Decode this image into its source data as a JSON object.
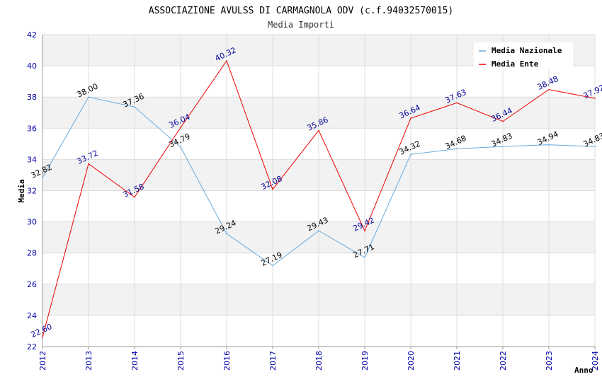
{
  "chart_data": {
    "type": "line",
    "title": "ASSOCIAZIONE AVULSS DI CARMAGNOLA ODV (c.f.94032570015)",
    "subtitle": "Media Importi",
    "xlabel": "Anno",
    "ylabel": "Media",
    "ylim": [
      22,
      42
    ],
    "yticks": [
      "22",
      "24",
      "26",
      "28",
      "30",
      "32",
      "34",
      "36",
      "38",
      "40",
      "42"
    ],
    "x": [
      "2012",
      "2013",
      "2014",
      "2015",
      "2016",
      "2017",
      "2018",
      "2019",
      "2020",
      "2021",
      "2022",
      "2023",
      "2024"
    ],
    "grid": true,
    "legend_position": "top-right",
    "series": [
      {
        "name": "Media Nazionale",
        "color": "#66aadd",
        "label_color": "#000000",
        "values": [
          32.82,
          38.0,
          37.36,
          34.79,
          29.24,
          27.19,
          29.43,
          27.71,
          34.32,
          34.68,
          34.83,
          34.94,
          34.83
        ],
        "labels": [
          "32.82",
          "38.00",
          "37.36",
          "34.79",
          "29.24",
          "27.19",
          "29.43",
          "27.71",
          "34.32",
          "34.68",
          "34.83",
          "34.94",
          "34.83"
        ]
      },
      {
        "name": "Media Ente",
        "color": "#ee0000",
        "label_color": "#000099",
        "values": [
          22.6,
          33.72,
          31.58,
          36.04,
          40.32,
          32.08,
          35.86,
          29.42,
          36.64,
          37.63,
          36.44,
          38.48,
          37.92
        ],
        "labels": [
          "22.60",
          "33.72",
          "31.58",
          "36.04",
          "40.32",
          "32.08",
          "35.86",
          "29.42",
          "36.64",
          "37.63",
          "36.44",
          "38.48",
          "37.92"
        ]
      }
    ]
  }
}
